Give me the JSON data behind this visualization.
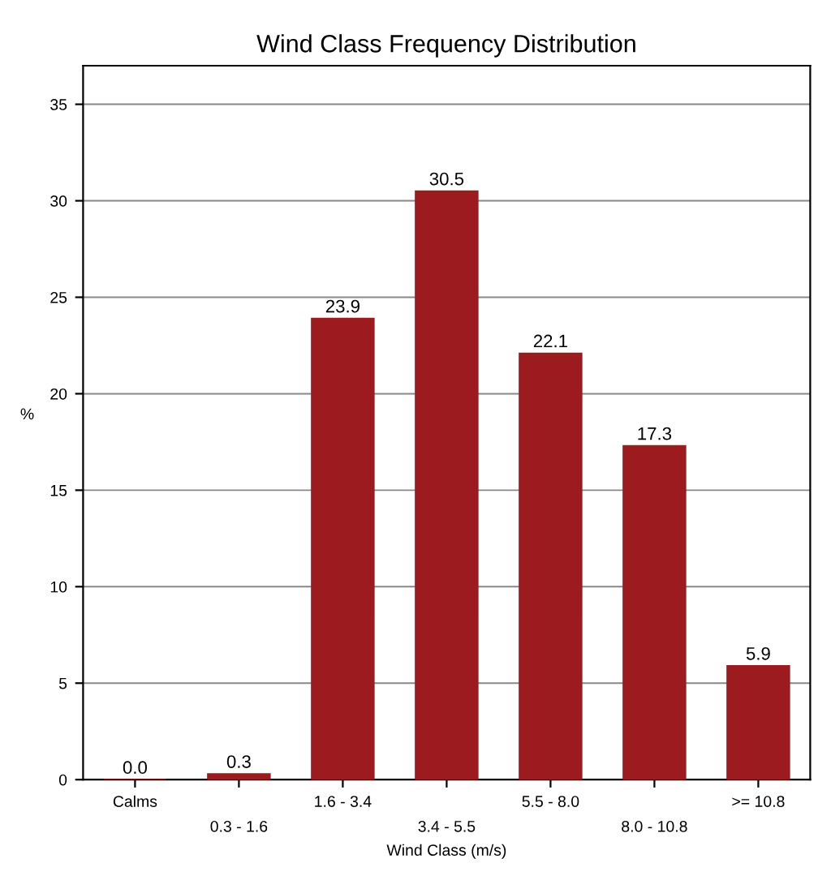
{
  "chart_data": {
    "type": "bar",
    "title": "Wind Class Frequency Distribution",
    "xlabel": "Wind Class (m/s)",
    "ylabel": "%",
    "categories": [
      "Calms",
      "0.3 - 1.6",
      "1.6 - 3.4",
      "3.4 - 5.5",
      "5.5 - 8.0",
      "8.0 - 10.8",
      ">= 10.8"
    ],
    "values": [
      0.0,
      0.3,
      23.9,
      30.5,
      22.1,
      17.3,
      5.9
    ],
    "value_labels": [
      "0.0",
      "0.3",
      "23.9",
      "30.5",
      "22.1",
      "17.3",
      "5.9"
    ],
    "color": "#9b1b1e",
    "ylim": [
      0,
      37
    ],
    "yticks": [
      0,
      5,
      10,
      15,
      20,
      25,
      30,
      35
    ],
    "grid": "y"
  }
}
